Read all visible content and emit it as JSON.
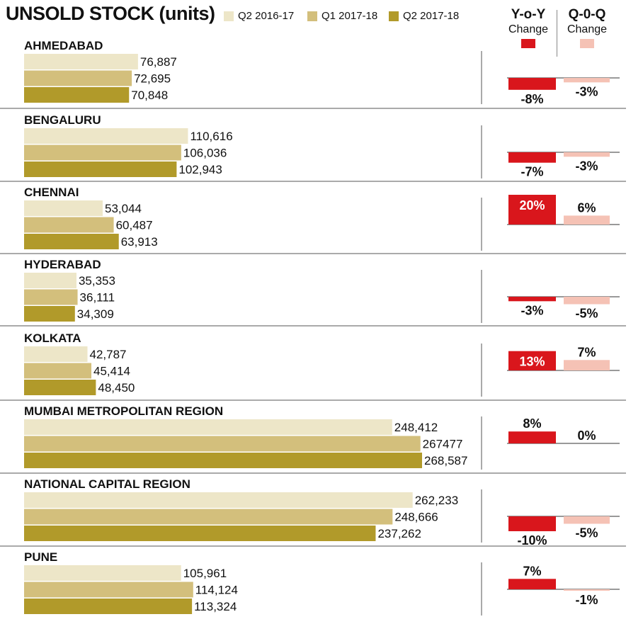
{
  "chart_data": {
    "type": "bar",
    "title": "UNSOLD STOCK (units)",
    "legend_placement": "top",
    "series": [
      {
        "name": "Q2 2016-17",
        "color": "#ede6c8"
      },
      {
        "name": "Q1 2017-18",
        "color": "#d3bf7c"
      },
      {
        "name": "Q2 2017-18",
        "color": "#b19a2a"
      }
    ],
    "change_columns": [
      {
        "title": "Y-o-Y",
        "subtitle": "Change",
        "color": "#d9161c"
      },
      {
        "title": "Q-0-Q",
        "subtitle": "Change",
        "color": "#f5c2b5"
      }
    ],
    "cities": [
      {
        "name": "AHMEDABAD",
        "values": [
          76887,
          72695,
          70848
        ],
        "labels": [
          "76,887",
          "72,695",
          "70,848"
        ],
        "yoy": -8,
        "yoy_label": "-8%",
        "qoq": -3,
        "qoq_label": "-3%"
      },
      {
        "name": "BENGALURU",
        "values": [
          110616,
          106036,
          102943
        ],
        "labels": [
          "110,616",
          "106,036",
          "102,943"
        ],
        "yoy": -7,
        "yoy_label": "-7%",
        "qoq": -3,
        "qoq_label": "-3%"
      },
      {
        "name": "CHENNAI",
        "values": [
          53044,
          60487,
          63913
        ],
        "labels": [
          "53,044",
          "60,487",
          "63,913"
        ],
        "yoy": 20,
        "yoy_label": "20%",
        "qoq": 6,
        "qoq_label": "6%"
      },
      {
        "name": "HYDERABAD",
        "values": [
          35353,
          36111,
          34309
        ],
        "labels": [
          "35,353",
          "36,111",
          "34,309"
        ],
        "yoy": -3,
        "yoy_label": "-3%",
        "qoq": -5,
        "qoq_label": "-5%"
      },
      {
        "name": "KOLKATA",
        "values": [
          42787,
          45414,
          48450
        ],
        "labels": [
          "42,787",
          "45,414",
          "48,450"
        ],
        "yoy": 13,
        "yoy_label": "13%",
        "qoq": 7,
        "qoq_label": "7%"
      },
      {
        "name": "MUMBAI METROPOLITAN REGION",
        "values": [
          248412,
          267477,
          268587
        ],
        "labels": [
          "248,412",
          "267477",
          "268,587"
        ],
        "yoy": 8,
        "yoy_label": "8%",
        "qoq": 0,
        "qoq_label": "0%"
      },
      {
        "name": "NATIONAL CAPITAL REGION",
        "values": [
          262233,
          248666,
          237262
        ],
        "labels": [
          "262,233",
          "248,666",
          "237,262"
        ],
        "yoy": -10,
        "yoy_label": "-10%",
        "qoq": -5,
        "qoq_label": "-5%"
      },
      {
        "name": "PUNE",
        "values": [
          105961,
          114124,
          113324
        ],
        "labels": [
          "105,961",
          "114,124",
          "113,324"
        ],
        "yoy": 7,
        "yoy_label": "7%",
        "qoq": -1,
        "qoq_label": "-1%"
      }
    ]
  }
}
